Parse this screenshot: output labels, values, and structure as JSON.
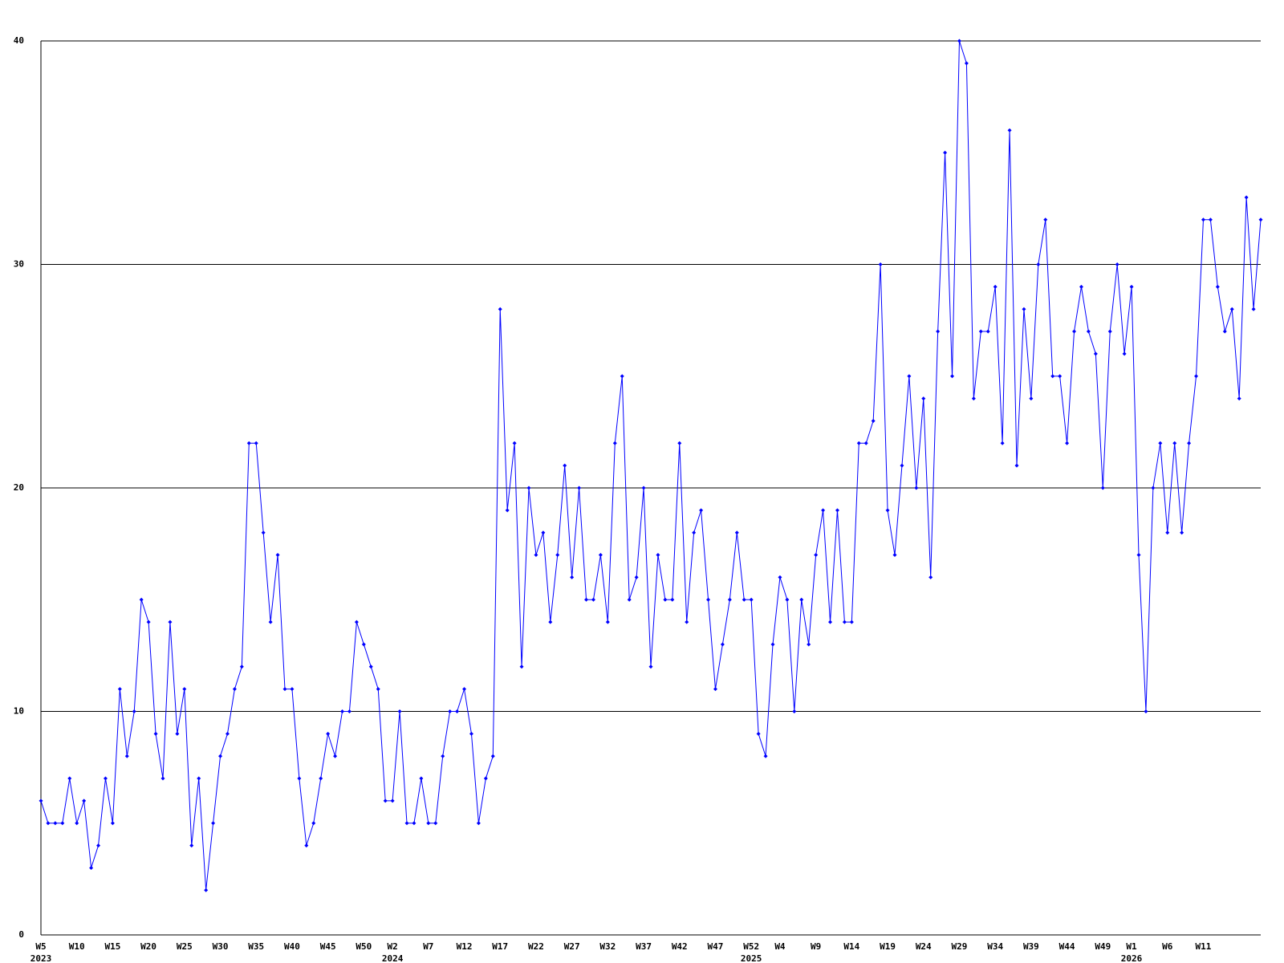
{
  "chart_data": {
    "type": "line",
    "categories": [
      "W5",
      null,
      null,
      null,
      null,
      "W10",
      null,
      null,
      null,
      null,
      "W15",
      null,
      null,
      null,
      null,
      "W20",
      null,
      null,
      null,
      null,
      "W25",
      null,
      null,
      null,
      null,
      "W30",
      null,
      null,
      null,
      null,
      "W35",
      null,
      null,
      null,
      null,
      "W40",
      null,
      null,
      null,
      null,
      "W45",
      null,
      null,
      null,
      null,
      "W50",
      null,
      null,
      null,
      "W2",
      null,
      null,
      null,
      null,
      "W7",
      null,
      null,
      null,
      null,
      "W12",
      null,
      null,
      null,
      null,
      "W17",
      null,
      null,
      null,
      null,
      "W22",
      null,
      null,
      null,
      null,
      "W27",
      null,
      null,
      null,
      null,
      "W32",
      null,
      null,
      null,
      null,
      "W37",
      null,
      null,
      null,
      null,
      "W42",
      null,
      null,
      null,
      null,
      "W47",
      null,
      null,
      null,
      null,
      "W52",
      null,
      null,
      null,
      "W4",
      null,
      null,
      null,
      null,
      "W9",
      null,
      null,
      null,
      null,
      "W14",
      null,
      null,
      null,
      null,
      "W19",
      null,
      null,
      null,
      null,
      "W24",
      null,
      null,
      null,
      null,
      "W29",
      null,
      null,
      null,
      null,
      "W34",
      null,
      null,
      null,
      null,
      "W39",
      null,
      null,
      null,
      null,
      "W44",
      null,
      null,
      null,
      null,
      "W49",
      null,
      null,
      null,
      "W1",
      null,
      null,
      null,
      null,
      "W6",
      null,
      null,
      null,
      null,
      "W11",
      null,
      null,
      null,
      null,
      null,
      null,
      null,
      null
    ],
    "category_years": [
      "2023",
      null,
      null,
      null,
      null,
      null,
      null,
      null,
      null,
      null,
      null,
      null,
      null,
      null,
      null,
      null,
      null,
      null,
      null,
      null,
      null,
      null,
      null,
      null,
      null,
      null,
      null,
      null,
      null,
      null,
      null,
      null,
      null,
      null,
      null,
      null,
      null,
      null,
      null,
      null,
      null,
      null,
      null,
      null,
      null,
      null,
      null,
      null,
      null,
      "2024",
      null,
      null,
      null,
      null,
      null,
      null,
      null,
      null,
      null,
      null,
      null,
      null,
      null,
      null,
      null,
      null,
      null,
      null,
      null,
      null,
      null,
      null,
      null,
      null,
      null,
      null,
      null,
      null,
      null,
      null,
      null,
      null,
      null,
      null,
      null,
      null,
      null,
      null,
      null,
      null,
      null,
      null,
      null,
      null,
      null,
      null,
      null,
      null,
      null,
      "2025",
      null,
      null,
      null,
      null,
      null,
      null,
      null,
      null,
      null,
      null,
      null,
      null,
      null,
      null,
      null,
      null,
      null,
      null,
      null,
      null,
      null,
      null,
      null,
      null,
      null,
      null,
      null,
      null,
      null,
      null,
      null,
      null,
      null,
      null,
      null,
      null,
      null,
      null,
      null,
      null,
      null,
      null,
      null,
      null,
      null,
      null,
      null,
      null,
      null,
      null,
      null,
      null,
      "2026",
      null,
      null,
      null,
      null,
      null,
      null,
      null,
      null,
      null,
      null,
      null,
      null,
      null,
      null,
      null,
      null,
      null,
      null
    ],
    "values": [
      6,
      5,
      5,
      5,
      7,
      5,
      6,
      3,
      4,
      7,
      5,
      11,
      8,
      10,
      15,
      14,
      9,
      7,
      14,
      9,
      11,
      4,
      7,
      2,
      5,
      8,
      9,
      11,
      12,
      22,
      22,
      18,
      14,
      17,
      11,
      11,
      7,
      4,
      5,
      7,
      9,
      8,
      10,
      10,
      14,
      13,
      12,
      11,
      6,
      6,
      10,
      5,
      5,
      7,
      5,
      5,
      8,
      10,
      10,
      11,
      9,
      5,
      7,
      8,
      28,
      19,
      22,
      12,
      20,
      17,
      18,
      14,
      17,
      21,
      16,
      20,
      15,
      15,
      17,
      14,
      22,
      25,
      15,
      16,
      20,
      12,
      17,
      15,
      15,
      22,
      14,
      18,
      19,
      15,
      11,
      13,
      15,
      18,
      15,
      15,
      9,
      8,
      13,
      16,
      15,
      10,
      15,
      13,
      17,
      19,
      14,
      19,
      14,
      14,
      22,
      22,
      23,
      30,
      19,
      17,
      21,
      25,
      20,
      24,
      16,
      27,
      35,
      25,
      40,
      39,
      24,
      27,
      27,
      29,
      22,
      36,
      21,
      28,
      24,
      30,
      32,
      25,
      25,
      22,
      27,
      29,
      27,
      26,
      20,
      27,
      30,
      26,
      29,
      17,
      10,
      20,
      22,
      18,
      22,
      18,
      22,
      25,
      32,
      32,
      29,
      27,
      28,
      24,
      33,
      28,
      32
    ],
    "color": "#0000ff",
    "ylim": [
      0,
      40
    ],
    "yticks": [
      0,
      10,
      20,
      30,
      40
    ],
    "grid": true
  }
}
